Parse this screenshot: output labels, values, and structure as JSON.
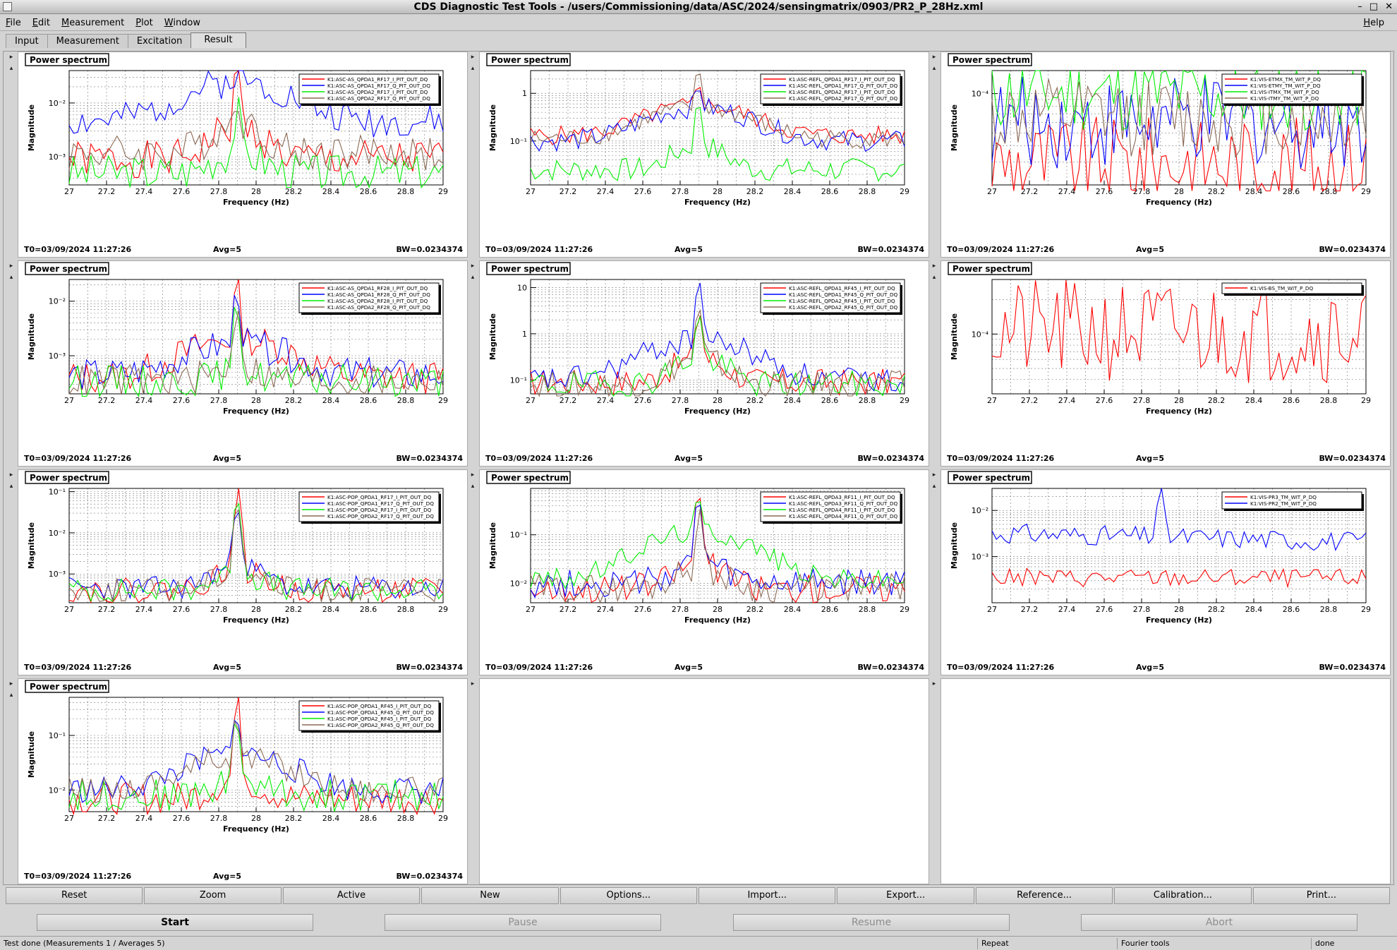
{
  "window": {
    "title": "CDS Diagnostic Test Tools - /users/Commissioning/data/ASC/2024/sensingmatrix/0903/PR2_P_28Hz.xml",
    "controls": [
      "–",
      "□",
      "✕"
    ]
  },
  "menubar": {
    "items": [
      "File",
      "Edit",
      "Measurement",
      "Plot",
      "Window"
    ],
    "help": "Help"
  },
  "tabs": [
    "Input",
    "Measurement",
    "Excitation",
    "Result"
  ],
  "active_tab": "Result",
  "pad_label": "Power spectrum",
  "empty_pads": [
    {
      "nav": "▸"
    },
    {
      "nav": "▸"
    }
  ],
  "chart_data": [
    {
      "type": "line",
      "title": "Power spectrum",
      "xlabel": "Frequency (Hz)",
      "ylabel": "Magnitude",
      "xlim": [
        27,
        29
      ],
      "ylim": [
        0.0003,
        0.04
      ],
      "log_y": true,
      "grid": true,
      "legend": "top-right",
      "x_ticks": [
        "27",
        "27.2",
        "27.4",
        "27.6",
        "27.8",
        "28",
        "28.2",
        "28.4",
        "28.6",
        "28.8",
        "29"
      ],
      "y_ticks": [
        {
          "v": 0.01,
          "t": "10⁻²"
        },
        {
          "v": 0.001,
          "t": "10⁻³"
        }
      ],
      "footer": {
        "t0": "T0=03/09/2024 11:27:26",
        "avg": "Avg=5",
        "bw": "BW=0.0234374"
      },
      "series": [
        {
          "name": "K1:ASC-AS_QPDA1_RF17_I_PIT_OUT_DQ",
          "color": "#ff0000",
          "shape": "peak",
          "base": 0.0009,
          "bump": 0.0035,
          "peak": 0.035,
          "noise": 0.35,
          "seed": 1
        },
        {
          "name": "K1:ASC-AS_QPDA1_RF17_Q_PIT_OUT_DQ",
          "color": "#0000ff",
          "shape": "plateau",
          "base": 0.0045,
          "bump": 0.025,
          "peak": 0.03,
          "noise": 0.3,
          "seed": 2
        },
        {
          "name": "K1:ASC-AS_QPDA2_RF17_I_PIT_OUT_DQ",
          "color": "#00ee00",
          "shape": "peak",
          "base": 0.0005,
          "bump": 0.0012,
          "peak": 0.006,
          "noise": 0.35,
          "seed": 3
        },
        {
          "name": "K1:ASC-AS_QPDA2_RF17_Q_PIT_OUT_DQ",
          "color": "#8b6a55",
          "shape": "peak",
          "base": 0.0012,
          "bump": 0.004,
          "peak": 0.012,
          "noise": 0.35,
          "seed": 4
        }
      ]
    },
    {
      "type": "line",
      "title": "Power spectrum",
      "xlabel": "Frequency (Hz)",
      "ylabel": "Magnitude",
      "xlim": [
        27,
        29
      ],
      "ylim": [
        0.012,
        3
      ],
      "log_y": true,
      "grid": true,
      "legend": "top-right",
      "x_ticks": [
        "27",
        "27.2",
        "27.4",
        "27.6",
        "27.8",
        "28",
        "28.2",
        "28.4",
        "28.6",
        "28.8",
        "29"
      ],
      "y_ticks": [
        {
          "v": 1,
          "t": "1"
        },
        {
          "v": 0.1,
          "t": "10⁻¹"
        }
      ],
      "footer": {
        "t0": "T0=03/09/2024 11:27:26",
        "avg": "Avg=5",
        "bw": "BW=0.0234374"
      },
      "series": [
        {
          "name": "K1:ASC-REFL_QPDA1_RF17_I_PIT_OUT_DQ",
          "color": "#ff0000",
          "shape": "plateau",
          "base": 0.13,
          "bump": 0.55,
          "peak": 1.5,
          "noise": 0.2,
          "seed": 5
        },
        {
          "name": "K1:ASC-REFL_QPDA1_RF17_Q_PIT_OUT_DQ",
          "color": "#0000ff",
          "shape": "plateau",
          "base": 0.1,
          "bump": 0.5,
          "peak": 1.1,
          "noise": 0.22,
          "seed": 6
        },
        {
          "name": "K1:ASC-REFL_QPDA2_RF17_I_PIT_OUT_DQ",
          "color": "#00ee00",
          "shape": "peak",
          "base": 0.025,
          "bump": 0.08,
          "peak": 0.6,
          "noise": 0.25,
          "seed": 7
        },
        {
          "name": "K1:ASC-REFL_QPDA2_RF17_Q_PIT_OUT_DQ",
          "color": "#8b6a55",
          "shape": "plateau",
          "base": 0.11,
          "bump": 0.5,
          "peak": 2.5,
          "noise": 0.2,
          "seed": 8
        }
      ]
    },
    {
      "type": "line",
      "title": "Power spectrum",
      "xlabel": "Frequency (Hz)",
      "ylabel": "Magnitude",
      "xlim": [
        27,
        29
      ],
      "ylim": [
        2e-05,
        0.00015
      ],
      "log_y": true,
      "grid": true,
      "legend": "top-right",
      "x_ticks": [
        "27",
        "27.2",
        "27.4",
        "27.6",
        "27.8",
        "28",
        "28.2",
        "28.4",
        "28.6",
        "28.8",
        "29"
      ],
      "y_ticks": [
        {
          "v": 0.0001,
          "t": "10⁻⁴"
        }
      ],
      "footer": {
        "t0": "T0=03/09/2024 11:27:26",
        "avg": "Avg=5",
        "bw": "BW=0.0234374"
      },
      "series": [
        {
          "name": "K1:VIS-ETMX_TM_WIT_P_DQ",
          "color": "#ff0000",
          "shape": "flat",
          "base": 3e-05,
          "noise": 0.35,
          "seed": 9
        },
        {
          "name": "K1:VIS-ETMY_TM_WIT_P_DQ",
          "color": "#0000ff",
          "shape": "flat",
          "base": 6e-05,
          "noise": 0.35,
          "seed": 10
        },
        {
          "name": "K1:VIS-ITMX_TM_WIT_P_DQ",
          "color": "#00ee00",
          "shape": "flat",
          "base": 0.0001,
          "noise": 0.3,
          "seed": 11
        },
        {
          "name": "K1:VIS-ITMY_TM_WIT_P_DQ",
          "color": "#8b6a55",
          "shape": "flat",
          "base": 6.5e-05,
          "noise": 0.3,
          "seed": 12
        }
      ]
    },
    {
      "type": "line",
      "title": "Power spectrum",
      "xlabel": "Frequency (Hz)",
      "ylabel": "Magnitude",
      "xlim": [
        27,
        29
      ],
      "ylim": [
        0.0002,
        0.025
      ],
      "log_y": true,
      "grid": true,
      "legend": "top-right",
      "x_ticks": [
        "27",
        "27.2",
        "27.4",
        "27.6",
        "27.8",
        "28",
        "28.2",
        "28.4",
        "28.6",
        "28.8",
        "29"
      ],
      "y_ticks": [
        {
          "v": 0.01,
          "t": "10⁻²"
        },
        {
          "v": 0.001,
          "t": "10⁻³"
        }
      ],
      "footer": {
        "t0": "T0=03/09/2024 11:27:26",
        "avg": "Avg=5",
        "bw": "BW=0.0234374"
      },
      "series": [
        {
          "name": "K1:ASC-AS_QPDA1_RF28_I_PIT_OUT_DQ",
          "color": "#ff0000",
          "shape": "plateau",
          "base": 0.0004,
          "bump": 0.002,
          "peak": 0.02,
          "noise": 0.3,
          "seed": 13
        },
        {
          "name": "K1:ASC-AS_QPDA1_RF28_Q_PIT_OUT_DQ",
          "color": "#0000ff",
          "shape": "plateau",
          "base": 0.00045,
          "bump": 0.0016,
          "peak": 0.015,
          "noise": 0.3,
          "seed": 14
        },
        {
          "name": "K1:ASC-AS_QPDA2_RF28_I_PIT_OUT_DQ",
          "color": "#00ee00",
          "shape": "peak",
          "base": 0.00035,
          "bump": 0.0005,
          "peak": 0.008,
          "noise": 0.3,
          "seed": 15
        },
        {
          "name": "K1:ASC-AS_QPDA2_RF28_Q_PIT_OUT_DQ",
          "color": "#8b6a55",
          "shape": "peak",
          "base": 0.00035,
          "bump": 0.0006,
          "peak": 0.01,
          "noise": 0.3,
          "seed": 16
        }
      ]
    },
    {
      "type": "line",
      "title": "Power spectrum",
      "xlabel": "Frequency (Hz)",
      "ylabel": "Magnitude",
      "xlim": [
        27,
        29
      ],
      "ylim": [
        0.05,
        15
      ],
      "log_y": true,
      "grid": true,
      "legend": "top-right",
      "x_ticks": [
        "27",
        "27.2",
        "27.4",
        "27.6",
        "27.8",
        "28",
        "28.2",
        "28.4",
        "28.6",
        "28.8",
        "29"
      ],
      "y_ticks": [
        {
          "v": 10,
          "t": "10"
        },
        {
          "v": 1,
          "t": "1"
        },
        {
          "v": 0.1,
          "t": "10⁻¹"
        }
      ],
      "footer": {
        "t0": "T0=03/09/2024 11:27:26",
        "avg": "Avg=5",
        "bw": "BW=0.0234374"
      },
      "series": [
        {
          "name": "K1:ASC-REFL_QPDA1_RF45_I_PIT_OUT_DQ",
          "color": "#ff0000",
          "shape": "peak",
          "base": 0.09,
          "bump": 0.3,
          "peak": 3,
          "noise": 0.3,
          "seed": 17
        },
        {
          "name": "K1:ASC-REFL_QPDA1_RF45_Q_PIT_OUT_DQ",
          "color": "#0000ff",
          "shape": "plateau",
          "base": 0.1,
          "bump": 0.7,
          "peak": 14,
          "noise": 0.28,
          "seed": 18
        },
        {
          "name": "K1:ASC-REFL_QPDA2_RF45_I_PIT_OUT_DQ",
          "color": "#00ee00",
          "shape": "peak",
          "base": 0.08,
          "bump": 0.3,
          "peak": 2,
          "noise": 0.3,
          "seed": 19
        },
        {
          "name": "K1:ASC-REFL_QPDA2_RF45_Q_PIT_OUT_DQ",
          "color": "#8b6a55",
          "shape": "peak",
          "base": 0.08,
          "bump": 0.3,
          "peak": 2.5,
          "noise": 0.3,
          "seed": 20
        }
      ]
    },
    {
      "type": "line",
      "title": "Power spectrum",
      "xlabel": "Frequency (Hz)",
      "ylabel": "Magnitude",
      "xlim": [
        27,
        29
      ],
      "ylim": [
        3e-05,
        0.0003
      ],
      "log_y": true,
      "grid": true,
      "legend": "top-right",
      "x_ticks": [
        "27",
        "27.2",
        "27.4",
        "27.6",
        "27.8",
        "28",
        "28.2",
        "28.4",
        "28.6",
        "28.8",
        "29"
      ],
      "y_ticks": [
        {
          "v": 0.0001,
          "t": "10⁻⁴"
        }
      ],
      "footer": {
        "t0": "T0=03/09/2024 11:27:26",
        "avg": "Avg=5",
        "bw": "BW=0.0234374"
      },
      "series": [
        {
          "name": "K1:VIS-BS_TM_WIT_P_DQ",
          "color": "#ff0000",
          "shape": "flat",
          "base": 0.000105,
          "noise": 0.45,
          "seed": 21
        }
      ]
    },
    {
      "type": "line",
      "title": "Power spectrum",
      "xlabel": "Frequency (Hz)",
      "ylabel": "Magnitude",
      "xlim": [
        27,
        29
      ],
      "ylim": [
        0.0002,
        0.12
      ],
      "log_y": true,
      "grid": true,
      "legend": "top-right",
      "x_ticks": [
        "27",
        "27.2",
        "27.4",
        "27.6",
        "27.8",
        "28",
        "28.2",
        "28.4",
        "28.6",
        "28.8",
        "29"
      ],
      "y_ticks": [
        {
          "v": 0.1,
          "t": "10⁻¹"
        },
        {
          "v": 0.01,
          "t": "10⁻²"
        },
        {
          "v": 0.001,
          "t": "10⁻³"
        }
      ],
      "footer": {
        "t0": "T0=03/09/2024 11:27:26",
        "avg": "Avg=5",
        "bw": "BW=0.0234374"
      },
      "series": [
        {
          "name": "K1:ASC-POP_QPDA1_RF17_I_PIT_OUT_DQ",
          "color": "#ff0000",
          "shape": "peak",
          "base": 0.0004,
          "bump": 0.0012,
          "peak": 0.09,
          "noise": 0.3,
          "seed": 22
        },
        {
          "name": "K1:ASC-POP_QPDA1_RF17_Q_PIT_OUT_DQ",
          "color": "#0000ff",
          "shape": "peak",
          "base": 0.00045,
          "bump": 0.0015,
          "peak": 0.07,
          "noise": 0.3,
          "seed": 23
        },
        {
          "name": "K1:ASC-POP_QPDA2_RF17_I_PIT_OUT_DQ",
          "color": "#00ee00",
          "shape": "peak",
          "base": 0.0004,
          "bump": 0.001,
          "peak": 0.1,
          "noise": 0.3,
          "seed": 24
        },
        {
          "name": "K1:ASC-POP_QPDA2_RF17_Q_PIT_OUT_DQ",
          "color": "#8b6a55",
          "shape": "peak",
          "base": 0.0004,
          "bump": 0.0012,
          "peak": 0.06,
          "noise": 0.3,
          "seed": 25
        }
      ]
    },
    {
      "type": "line",
      "title": "Power spectrum",
      "xlabel": "Frequency (Hz)",
      "ylabel": "Magnitude",
      "xlim": [
        27,
        29
      ],
      "ylim": [
        0.004,
        0.9
      ],
      "log_y": true,
      "grid": true,
      "legend": "top-right",
      "x_ticks": [
        "27",
        "27.2",
        "27.4",
        "27.6",
        "27.8",
        "28",
        "28.2",
        "28.4",
        "28.6",
        "28.8",
        "29"
      ],
      "y_ticks": [
        {
          "v": 0.1,
          "t": "10⁻¹"
        },
        {
          "v": 0.01,
          "t": "10⁻²"
        }
      ],
      "footer": {
        "t0": "T0=03/09/2024 11:27:26",
        "avg": "Avg=5",
        "bw": "BW=0.0234374"
      },
      "series": [
        {
          "name": "K1:ASC-REFL_QPDA3_RF11_I_PIT_OUT_DQ",
          "color": "#ff0000",
          "shape": "peak",
          "base": 0.008,
          "bump": 0.025,
          "peak": 0.8,
          "noise": 0.3,
          "seed": 26
        },
        {
          "name": "K1:ASC-REFL_QPDA3_RF11_Q_PIT_OUT_DQ",
          "color": "#0000ff",
          "shape": "peak",
          "base": 0.01,
          "bump": 0.025,
          "peak": 0.5,
          "noise": 0.3,
          "seed": 27
        },
        {
          "name": "K1:ASC-REFL_QPDA4_RF11_I_PIT_OUT_DQ",
          "color": "#00ee00",
          "shape": "plateau",
          "base": 0.012,
          "bump": 0.12,
          "peak": 0.4,
          "noise": 0.22,
          "seed": 28
        },
        {
          "name": "K1:ASC-REFL_QPDA4_RF11_Q_PIT_OUT_DQ",
          "color": "#8b6a55",
          "shape": "peak",
          "base": 0.008,
          "bump": 0.02,
          "peak": 0.3,
          "noise": 0.3,
          "seed": 29
        }
      ]
    },
    {
      "type": "line",
      "title": "Power spectrum",
      "xlabel": "Frequency (Hz)",
      "ylabel": "Magnitude",
      "xlim": [
        27,
        29
      ],
      "ylim": [
        0.0001,
        0.03
      ],
      "log_y": true,
      "grid": true,
      "legend": "top-right",
      "x_ticks": [
        "27",
        "27.2",
        "27.4",
        "27.6",
        "27.8",
        "28",
        "28.2",
        "28.4",
        "28.6",
        "28.8",
        "29"
      ],
      "y_ticks": [
        {
          "v": 0.01,
          "t": "10⁻²"
        },
        {
          "v": 0.001,
          "t": "10⁻³"
        }
      ],
      "footer": {
        "t0": "T0=03/09/2024 11:27:26",
        "avg": "Avg=5",
        "bw": "BW=0.0234374"
      },
      "series": [
        {
          "name": "K1:VIS-PR3_TM_WIT_P_DQ",
          "color": "#ff0000",
          "shape": "flat",
          "base": 0.00035,
          "noise": 0.2,
          "seed": 30
        },
        {
          "name": "K1:VIS-PR2_TM_WIT_P_DQ",
          "color": "#0000ff",
          "shape": "slope",
          "base": 0.0032,
          "peak": 0.028,
          "noise": 0.22,
          "seed": 31
        }
      ]
    },
    {
      "type": "line",
      "title": "Power spectrum",
      "xlabel": "Frequency (Hz)",
      "ylabel": "Magnitude",
      "xlim": [
        27,
        29
      ],
      "ylim": [
        0.004,
        0.5
      ],
      "log_y": true,
      "grid": true,
      "legend": "top-right",
      "x_ticks": [
        "27",
        "27.2",
        "27.4",
        "27.6",
        "27.8",
        "28",
        "28.2",
        "28.4",
        "28.6",
        "28.8",
        "29"
      ],
      "y_ticks": [
        {
          "v": 0.1,
          "t": "10⁻¹"
        },
        {
          "v": 0.01,
          "t": "10⁻²"
        }
      ],
      "footer": {
        "t0": "T0=03/09/2024 11:27:26",
        "avg": "Avg=5",
        "bw": "BW=0.0234374"
      },
      "series": [
        {
          "name": "K1:ASC-POP_QPDA1_RF45_I_PIT_OUT_DQ",
          "color": "#ff0000",
          "shape": "peak",
          "base": 0.007,
          "bump": 0.015,
          "peak": 0.4,
          "noise": 0.3,
          "seed": 32
        },
        {
          "name": "K1:ASC-POP_QPDA1_RF45_Q_PIT_OUT_DQ",
          "color": "#0000ff",
          "shape": "plateau",
          "base": 0.01,
          "bump": 0.045,
          "peak": 0.25,
          "noise": 0.25,
          "seed": 33
        },
        {
          "name": "K1:ASC-POP_QPDA2_RF45_I_PIT_OUT_DQ",
          "color": "#00ee00",
          "shape": "peak",
          "base": 0.008,
          "bump": 0.015,
          "peak": 0.2,
          "noise": 0.3,
          "seed": 34
        },
        {
          "name": "K1:ASC-POP_QPDA2_RF45_Q_PIT_OUT_DQ",
          "color": "#8b6a55",
          "shape": "plateau",
          "base": 0.01,
          "bump": 0.04,
          "peak": 0.15,
          "noise": 0.25,
          "seed": 35
        }
      ]
    }
  ],
  "buttons": [
    "Reset",
    "Zoom",
    "Active",
    "New",
    "Options...",
    "Import...",
    "Export...",
    "Reference...",
    "Calibration...",
    "Print..."
  ],
  "controls": [
    {
      "label": "Start",
      "enabled": true
    },
    {
      "label": "Pause",
      "enabled": false
    },
    {
      "label": "Resume",
      "enabled": false
    },
    {
      "label": "Abort",
      "enabled": false
    }
  ],
  "status": {
    "message": "Test done (Measurements 1 / Averages 5)",
    "repeat": "Repeat",
    "tools": "Fourier tools",
    "state": "done"
  }
}
